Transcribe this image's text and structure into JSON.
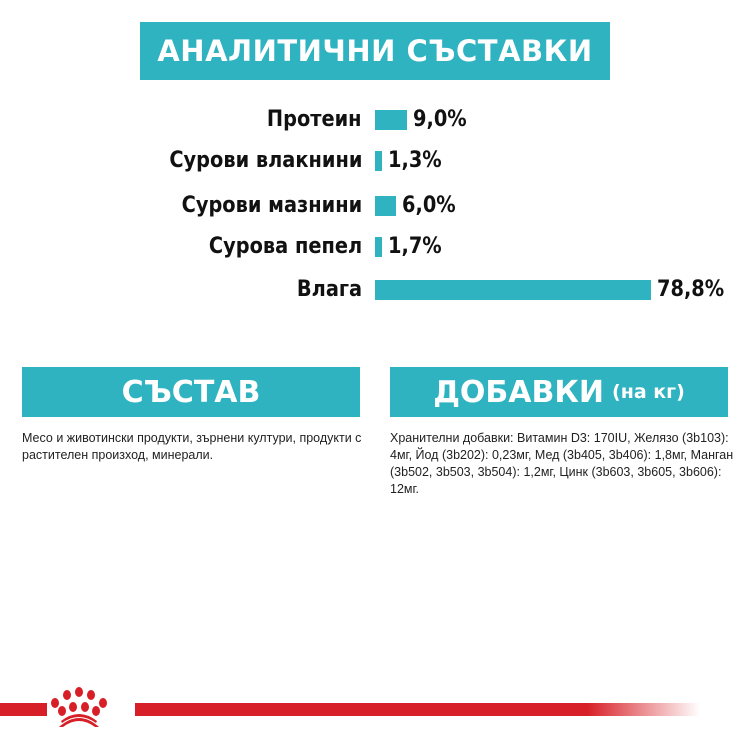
{
  "title": "АНАЛИТИЧНИ СЪСТАВКИ",
  "chart_data": {
    "type": "bar",
    "orientation": "horizontal",
    "categories": [
      "Протеин",
      "Сурови влакнини",
      "Сурови мазнини",
      "Сурова пепел",
      "Влага"
    ],
    "values": [
      9.0,
      1.3,
      6.0,
      1.7,
      78.8
    ],
    "value_labels": [
      "9,0%",
      "1,3%",
      "6,0%",
      "1,7%",
      "78,8%"
    ],
    "unit": "%",
    "color": "#2fb3c1",
    "grid": false
  },
  "composition": {
    "heading": "СЪСТАВ",
    "text": "Месо и животински продукти, зърнени култури, продукти с растителен произход, минерали."
  },
  "additives": {
    "heading": "ДОБАВКИ",
    "heading_suffix": "(на кг)",
    "text": "Хранителни добавки: Витамин D3: 170IU, Желязо (3b103): 4мг, Йод (3b202): 0,23мг, Мед (3b405, 3b406): 1,8мг, Манган (3b502, 3b503, 3b504): 1,2мг, Цинк (3b603, 3b605, 3b606): 12мг."
  },
  "colors": {
    "accent": "#2fb3c1",
    "brand_red": "#d71f27"
  },
  "logo": "royal-canin-crown"
}
